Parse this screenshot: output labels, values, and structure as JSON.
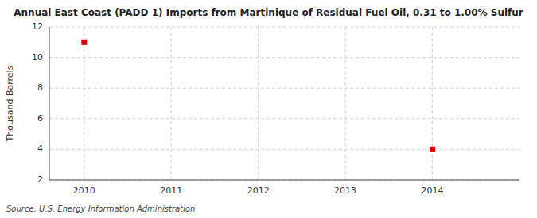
{
  "chart_data": {
    "type": "scatter",
    "title": "Annual East Coast (PADD 1) Imports from Martinique of Residual Fuel Oil, 0.31 to 1.00% Sulfur",
    "ylabel": "Thousand Barrels",
    "source": "Source: U.S. Energy Information Administration",
    "x": [
      2010,
      2014
    ],
    "values": [
      11,
      4
    ],
    "xlim": [
      2009.6,
      2015.0
    ],
    "ylim": [
      2,
      12
    ],
    "xticks": [
      2010,
      2011,
      2012,
      2013,
      2014
    ],
    "yticks": [
      2,
      4,
      6,
      8,
      10,
      12
    ],
    "color": "#cc0000",
    "marker": "square",
    "grid": true
  }
}
